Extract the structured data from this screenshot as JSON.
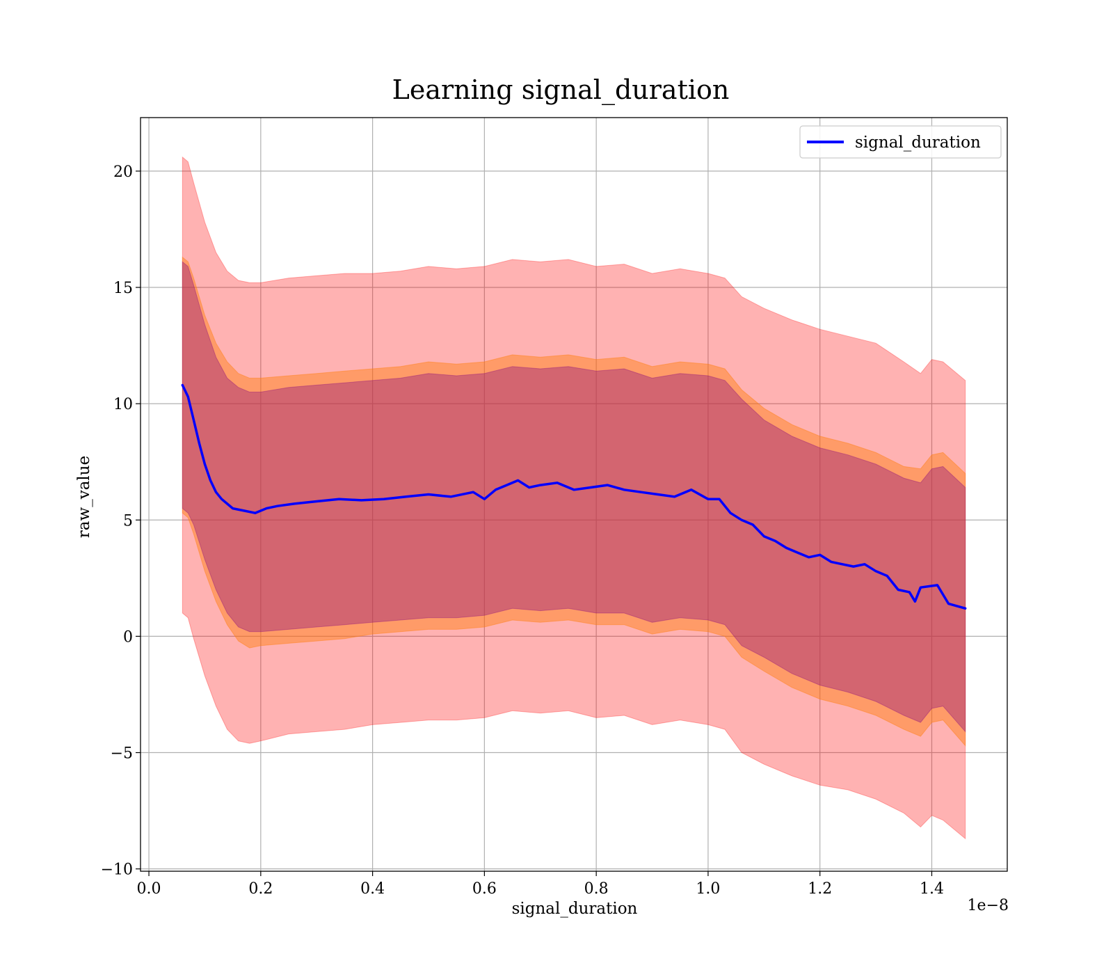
{
  "chart_data": {
    "type": "line",
    "title": "Learning signal_duration",
    "xlabel": "signal_duration",
    "ylabel": "raw_value",
    "x_offset_label": "1e−8",
    "xlim": [
      -0.015,
      1.535
    ],
    "ylim": [
      -10.1,
      22.3
    ],
    "x_ticks": [
      0.0,
      0.2,
      0.4,
      0.6,
      0.8,
      1.0,
      1.2,
      1.4
    ],
    "x_tick_labels": [
      "0.0",
      "0.2",
      "0.4",
      "0.6",
      "0.8",
      "1.0",
      "1.2",
      "1.4"
    ],
    "y_ticks": [
      -10,
      -5,
      0,
      5,
      10,
      15,
      20
    ],
    "y_tick_labels": [
      "−10",
      "−5",
      "0",
      "5",
      "10",
      "15",
      "20"
    ],
    "grid": true,
    "legend_position": "top-right",
    "colors": {
      "line": "#0000ff",
      "band_outer": "#ff0000",
      "band_middle": "#ff7f0e",
      "band_inner": "#800080"
    },
    "series": [
      {
        "name": "signal_duration",
        "x": [
          0.06,
          0.07,
          0.08,
          0.09,
          0.1,
          0.11,
          0.12,
          0.13,
          0.14,
          0.15,
          0.17,
          0.19,
          0.21,
          0.23,
          0.26,
          0.3,
          0.34,
          0.38,
          0.42,
          0.46,
          0.5,
          0.54,
          0.58,
          0.6,
          0.62,
          0.64,
          0.66,
          0.68,
          0.7,
          0.73,
          0.76,
          0.79,
          0.82,
          0.85,
          0.88,
          0.91,
          0.94,
          0.97,
          1.0,
          1.02,
          1.04,
          1.06,
          1.08,
          1.1,
          1.12,
          1.14,
          1.16,
          1.18,
          1.2,
          1.22,
          1.24,
          1.26,
          1.28,
          1.3,
          1.32,
          1.34,
          1.36,
          1.37,
          1.38,
          1.41,
          1.43,
          1.46
        ],
        "y": [
          10.8,
          10.3,
          9.3,
          8.3,
          7.4,
          6.7,
          6.2,
          5.9,
          5.7,
          5.5,
          5.4,
          5.3,
          5.5,
          5.6,
          5.7,
          5.8,
          5.9,
          5.85,
          5.9,
          6.0,
          6.1,
          6.0,
          6.2,
          5.9,
          6.3,
          6.5,
          6.7,
          6.4,
          6.5,
          6.6,
          6.3,
          6.4,
          6.5,
          6.3,
          6.2,
          6.1,
          6.0,
          6.3,
          5.9,
          5.9,
          5.3,
          5.0,
          4.8,
          4.3,
          4.1,
          3.8,
          3.6,
          3.4,
          3.5,
          3.2,
          3.1,
          3.0,
          3.1,
          2.8,
          2.6,
          2.0,
          1.9,
          1.5,
          2.1,
          2.2,
          1.4,
          1.2
        ]
      }
    ],
    "bands": [
      {
        "name": "outer",
        "x": [
          0.06,
          0.07,
          0.08,
          0.1,
          0.12,
          0.14,
          0.16,
          0.18,
          0.2,
          0.25,
          0.3,
          0.35,
          0.4,
          0.45,
          0.5,
          0.55,
          0.6,
          0.65,
          0.7,
          0.75,
          0.8,
          0.85,
          0.9,
          0.95,
          1.0,
          1.03,
          1.06,
          1.1,
          1.15,
          1.2,
          1.25,
          1.3,
          1.35,
          1.38,
          1.4,
          1.42,
          1.46
        ],
        "upper": [
          20.6,
          20.4,
          19.5,
          17.8,
          16.5,
          15.7,
          15.3,
          15.2,
          15.2,
          15.4,
          15.5,
          15.6,
          15.6,
          15.7,
          15.9,
          15.8,
          15.9,
          16.2,
          16.1,
          16.2,
          15.9,
          16.0,
          15.6,
          15.8,
          15.6,
          15.4,
          14.6,
          14.1,
          13.6,
          13.2,
          12.9,
          12.6,
          11.8,
          11.3,
          11.9,
          11.8,
          11.0
        ],
        "lower": [
          1.0,
          0.8,
          -0.1,
          -1.7,
          -3.0,
          -4.0,
          -4.5,
          -4.6,
          -4.5,
          -4.2,
          -4.1,
          -4.0,
          -3.8,
          -3.7,
          -3.6,
          -3.6,
          -3.5,
          -3.2,
          -3.3,
          -3.2,
          -3.5,
          -3.4,
          -3.8,
          -3.6,
          -3.8,
          -4.0,
          -5.0,
          -5.5,
          -6.0,
          -6.4,
          -6.6,
          -7.0,
          -7.6,
          -8.2,
          -7.7,
          -7.9,
          -8.7
        ]
      },
      {
        "name": "middle",
        "x": [
          0.06,
          0.07,
          0.08,
          0.1,
          0.12,
          0.14,
          0.16,
          0.18,
          0.2,
          0.25,
          0.3,
          0.35,
          0.4,
          0.45,
          0.5,
          0.55,
          0.6,
          0.65,
          0.7,
          0.75,
          0.8,
          0.85,
          0.9,
          0.95,
          1.0,
          1.03,
          1.06,
          1.1,
          1.15,
          1.2,
          1.25,
          1.3,
          1.35,
          1.38,
          1.4,
          1.42,
          1.46
        ],
        "upper": [
          16.3,
          16.1,
          15.4,
          13.8,
          12.6,
          11.8,
          11.3,
          11.1,
          11.1,
          11.2,
          11.3,
          11.4,
          11.5,
          11.6,
          11.8,
          11.7,
          11.8,
          12.1,
          12.0,
          12.1,
          11.9,
          12.0,
          11.6,
          11.8,
          11.7,
          11.5,
          10.6,
          9.8,
          9.1,
          8.6,
          8.3,
          7.9,
          7.3,
          7.2,
          7.8,
          7.9,
          7.0
        ],
        "lower": [
          5.3,
          5.1,
          4.4,
          2.8,
          1.5,
          0.5,
          -0.2,
          -0.5,
          -0.4,
          -0.3,
          -0.2,
          -0.1,
          0.1,
          0.2,
          0.3,
          0.3,
          0.4,
          0.7,
          0.6,
          0.7,
          0.5,
          0.5,
          0.1,
          0.3,
          0.2,
          0.0,
          -0.9,
          -1.5,
          -2.2,
          -2.7,
          -3.0,
          -3.4,
          -4.0,
          -4.3,
          -3.7,
          -3.6,
          -4.7
        ]
      },
      {
        "name": "inner",
        "x": [
          0.06,
          0.07,
          0.08,
          0.1,
          0.12,
          0.14,
          0.16,
          0.18,
          0.2,
          0.25,
          0.3,
          0.35,
          0.4,
          0.45,
          0.5,
          0.55,
          0.6,
          0.65,
          0.7,
          0.75,
          0.8,
          0.85,
          0.9,
          0.95,
          1.0,
          1.03,
          1.06,
          1.1,
          1.15,
          1.2,
          1.25,
          1.3,
          1.35,
          1.38,
          1.4,
          1.42,
          1.46
        ],
        "upper": [
          16.1,
          15.9,
          15.1,
          13.4,
          12.0,
          11.1,
          10.7,
          10.5,
          10.5,
          10.7,
          10.8,
          10.9,
          11.0,
          11.1,
          11.3,
          11.2,
          11.3,
          11.6,
          11.5,
          11.6,
          11.4,
          11.5,
          11.1,
          11.3,
          11.2,
          11.0,
          10.2,
          9.3,
          8.6,
          8.1,
          7.8,
          7.4,
          6.8,
          6.6,
          7.2,
          7.3,
          6.4
        ],
        "lower": [
          5.5,
          5.3,
          4.8,
          3.3,
          2.0,
          1.0,
          0.4,
          0.2,
          0.2,
          0.3,
          0.4,
          0.5,
          0.6,
          0.7,
          0.8,
          0.8,
          0.9,
          1.2,
          1.1,
          1.2,
          1.0,
          1.0,
          0.6,
          0.8,
          0.7,
          0.5,
          -0.4,
          -0.9,
          -1.6,
          -2.1,
          -2.4,
          -2.8,
          -3.4,
          -3.7,
          -3.1,
          -3.0,
          -4.1
        ]
      }
    ]
  }
}
